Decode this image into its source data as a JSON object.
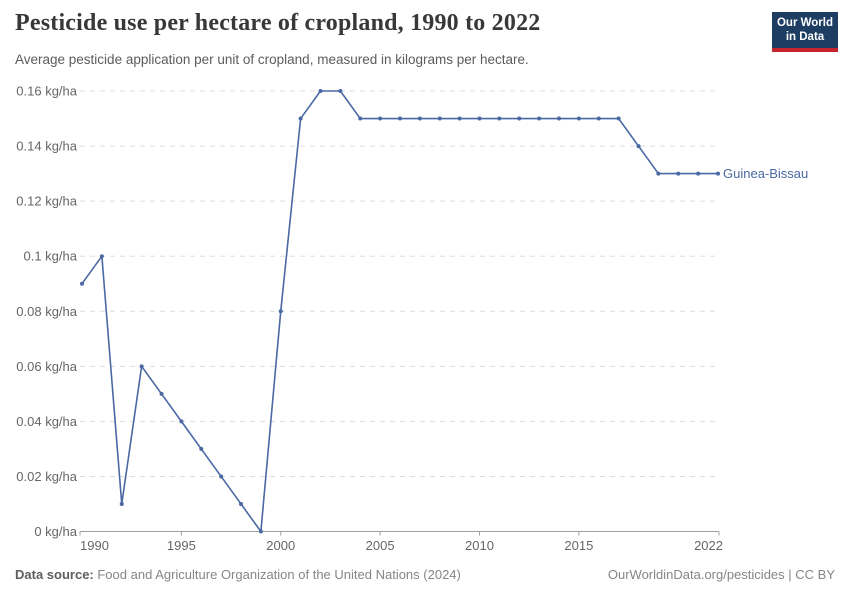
{
  "header": {
    "title": "Pesticide use per hectare of cropland, 1990 to 2022",
    "subtitle": "Average pesticide application per unit of cropland, measured in kilograms per hectare.",
    "logo": {
      "line1": "Our World",
      "line2": "in Data"
    }
  },
  "chart_data": {
    "type": "line",
    "title": "Pesticide use per hectare of cropland, 1990 to 2022",
    "xlabel": "",
    "ylabel": "",
    "unit": "kg/ha",
    "xlim": [
      1990,
      2022
    ],
    "ylim": [
      0,
      0.16
    ],
    "grid": "horizontal-dashed",
    "legend_position": "line-end-label",
    "x": [
      1990,
      1991,
      1992,
      1993,
      1994,
      1995,
      1996,
      1997,
      1998,
      1999,
      2000,
      2001,
      2002,
      2003,
      2004,
      2005,
      2006,
      2007,
      2008,
      2009,
      2010,
      2011,
      2012,
      2013,
      2014,
      2015,
      2016,
      2017,
      2018,
      2019,
      2020,
      2021,
      2022
    ],
    "series": [
      {
        "name": "Guinea-Bissau",
        "color": "#4a68a3",
        "values": [
          0.09,
          0.1,
          0.01,
          0.06,
          0.05,
          0.04,
          0.03,
          0.02,
          0.01,
          0,
          0.08,
          0.15,
          0.16,
          0.16,
          0.15,
          0.15,
          0.15,
          0.15,
          0.15,
          0.15,
          0.15,
          0.15,
          0.15,
          0.15,
          0.15,
          0.15,
          0.15,
          0.15,
          0.14,
          0.13,
          0.13,
          0.13,
          0.13
        ]
      }
    ],
    "yticks": [
      {
        "value": 0,
        "label": "0 kg/ha"
      },
      {
        "value": 0.02,
        "label": "0.02 kg/ha"
      },
      {
        "value": 0.04,
        "label": "0.04 kg/ha"
      },
      {
        "value": 0.06,
        "label": "0.06 kg/ha"
      },
      {
        "value": 0.08,
        "label": "0.08 kg/ha"
      },
      {
        "value": 0.1,
        "label": "0.1 kg/ha"
      },
      {
        "value": 0.12,
        "label": "0.12 kg/ha"
      },
      {
        "value": 0.14,
        "label": "0.14 kg/ha"
      },
      {
        "value": 0.16,
        "label": "0.16 kg/ha"
      }
    ],
    "xticks": [
      {
        "value": 1990,
        "label": "1990"
      },
      {
        "value": 1995,
        "label": "1995"
      },
      {
        "value": 2000,
        "label": "2000"
      },
      {
        "value": 2005,
        "label": "2005"
      },
      {
        "value": 2010,
        "label": "2010"
      },
      {
        "value": 2015,
        "label": "2015"
      },
      {
        "value": 2022,
        "label": "2022"
      }
    ]
  },
  "footer": {
    "source_label": "Data source:",
    "source_text": " Food and Agriculture Organization of the United Nations (2024)",
    "right_text": "OurWorldinData.org/pesticides | CC BY"
  },
  "colors": {
    "line": "#4a68a3",
    "grid": "#dddddd",
    "axis": "#a1a1a1",
    "tick_text": "#666666",
    "background": "#ffffff",
    "logo_bg": "#1d3d63",
    "logo_accent": "#c7252d"
  }
}
